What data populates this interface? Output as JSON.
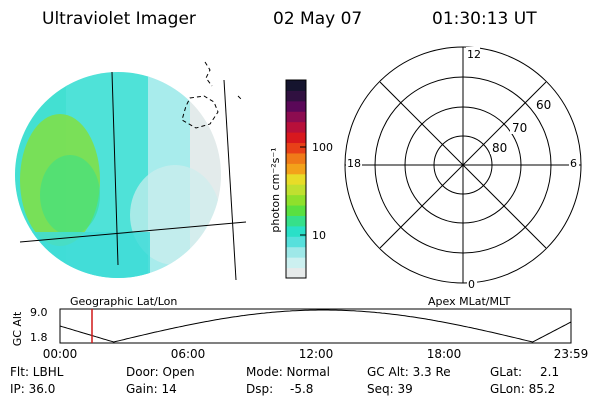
{
  "header": {
    "title": "Ultraviolet Imager",
    "date": "02 May 07",
    "time": "01:30:13 UT"
  },
  "colorbar": {
    "label": "photon cm⁻²s⁻¹",
    "ticks": [
      "100",
      "10"
    ],
    "colors": [
      "#e6eaea",
      "#ccf0f0",
      "#9ee8e8",
      "#57e0dc",
      "#2ae0c8",
      "#36e08a",
      "#5ae040",
      "#8fe02c",
      "#c0e030",
      "#e8dc28",
      "#f3a21a",
      "#f07a18",
      "#e84018",
      "#d8181e",
      "#b8103a",
      "#8c0c50",
      "#5a0858",
      "#301040",
      "#15142e"
    ]
  },
  "polar": {
    "mlt_labels": [
      "12",
      "18",
      "6",
      "0"
    ],
    "lat_labels": [
      "60",
      "70",
      "80"
    ]
  },
  "plot": {
    "ylabel": "GC Alt",
    "yticks": [
      "9.0",
      "1.8"
    ],
    "left_caption": "Geographic Lat/Lon",
    "right_caption": "Apex MLat/MLT",
    "xticks": [
      "00:00",
      "06:00",
      "12:00",
      "18:00",
      "23:59"
    ],
    "current_time_fraction": 0.0626
  },
  "status": {
    "flt": "Flt: LBHL",
    "ip": "IP: 36.0",
    "door": "Door: Open",
    "gain": "Gain: 14",
    "mode": "Mode: Normal",
    "dsp_label": "Dsp:",
    "dsp_value": "-5.8",
    "gcalt": "GC Alt: 3.3 Re",
    "seq": "Seq: 39",
    "glat_label": "GLat:",
    "glat_value": "2.1",
    "glon": "GLon: 85.2"
  },
  "accent": {
    "marker": "#d01818"
  }
}
